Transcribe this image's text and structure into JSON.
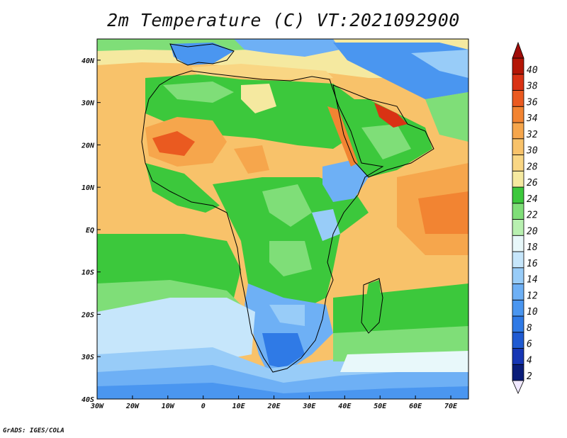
{
  "title": "2m Temperature (C) VT:2021092900",
  "credit": "GrADS: IGES/COLA",
  "map": {
    "lon_range": [
      -30,
      75
    ],
    "lat_range": [
      -40,
      45
    ],
    "lon_ticks": [
      {
        "value": -30,
        "label": "30W"
      },
      {
        "value": -20,
        "label": "20W"
      },
      {
        "value": -10,
        "label": "10W"
      },
      {
        "value": 0,
        "label": "0"
      },
      {
        "value": 10,
        "label": "10E"
      },
      {
        "value": 20,
        "label": "20E"
      },
      {
        "value": 30,
        "label": "30E"
      },
      {
        "value": 40,
        "label": "40E"
      },
      {
        "value": 50,
        "label": "50E"
      },
      {
        "value": 60,
        "label": "60E"
      },
      {
        "value": 70,
        "label": "70E"
      }
    ],
    "lat_ticks": [
      {
        "value": 40,
        "label": "40N"
      },
      {
        "value": 30,
        "label": "30N"
      },
      {
        "value": 20,
        "label": "20N"
      },
      {
        "value": 10,
        "label": "10N"
      },
      {
        "value": 0,
        "label": "EQ"
      },
      {
        "value": -10,
        "label": "10S"
      },
      {
        "value": -20,
        "label": "20S"
      },
      {
        "value": -30,
        "label": "30S"
      },
      {
        "value": -40,
        "label": "40S"
      }
    ]
  },
  "colorbar": {
    "levels": [
      "2",
      "4",
      "6",
      "8",
      "10",
      "12",
      "14",
      "16",
      "18",
      "20",
      "22",
      "24",
      "26",
      "28",
      "30",
      "32",
      "34",
      "36",
      "38",
      "40"
    ],
    "colors": [
      "#0a1d7a",
      "#1636b4",
      "#1f5ad2",
      "#2f7ae6",
      "#4a96f0",
      "#6eb0f5",
      "#98ccf8",
      "#c6e6fb",
      "#e8f8fa",
      "#b8f0b0",
      "#7fde78",
      "#3cc83c",
      "#f5e9a0",
      "#f9d684",
      "#f8c26a",
      "#f6a64c",
      "#f28432",
      "#ea5a20",
      "#d93214",
      "#b41606"
    ],
    "under_color": "#f0e8ff",
    "over_color": "#a00c08"
  }
}
